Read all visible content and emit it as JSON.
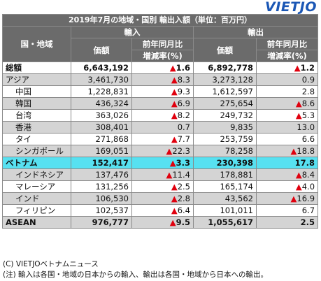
{
  "logo": {
    "part1": "VIET",
    "part2": "JO"
  },
  "table": {
    "title": "2019年7月の地域・国別 輸出入額（単位：百万円）",
    "col_region": "国・地域",
    "import_label": "輸入",
    "export_label": "輸出",
    "value_label": "価額",
    "change_label_1": "前年同月比",
    "change_label_2": "増減率(%)"
  },
  "neg_marker": "▲",
  "rows": [
    {
      "name": "総額",
      "imp": "6,643,192",
      "imp_neg": true,
      "imp_chg": "1.6",
      "exp": "6,892,778",
      "exp_neg": true,
      "exp_chg": "1.2",
      "style": "bold"
    },
    {
      "name": "アジア",
      "imp": "3,461,730",
      "imp_neg": true,
      "imp_chg": "8.3",
      "exp": "3,273,128",
      "exp_neg": false,
      "exp_chg": "0.9",
      "style": "grey"
    },
    {
      "name": "中国",
      "imp": "1,228,831",
      "imp_neg": true,
      "imp_chg": "9.3",
      "exp": "1,612,597",
      "exp_neg": false,
      "exp_chg": "2.8",
      "style": "indent"
    },
    {
      "name": "韓国",
      "imp": "436,324",
      "imp_neg": true,
      "imp_chg": "6.9",
      "exp": "275,654",
      "exp_neg": true,
      "exp_chg": "8.6",
      "style": "grey-indent"
    },
    {
      "name": "台湾",
      "imp": "363,026",
      "imp_neg": true,
      "imp_chg": "8.2",
      "exp": "249,732",
      "exp_neg": true,
      "exp_chg": "5.3",
      "style": "indent"
    },
    {
      "name": "香港",
      "imp": "308,401",
      "imp_neg": false,
      "imp_chg": "0.7",
      "exp": "9,835",
      "exp_neg": false,
      "exp_chg": "13.0",
      "style": "grey-indent"
    },
    {
      "name": "タイ",
      "imp": "271,868",
      "imp_neg": true,
      "imp_chg": "7.7",
      "exp": "253,759",
      "exp_neg": false,
      "exp_chg": "6.6",
      "style": "indent"
    },
    {
      "name": "シンガポール",
      "imp": "169,051",
      "imp_neg": true,
      "imp_chg": "22.3",
      "exp": "78,258",
      "exp_neg": true,
      "exp_chg": "18.8",
      "style": "grey-indent"
    },
    {
      "name": "ベトナム",
      "imp": "152,417",
      "imp_neg": true,
      "imp_chg": "3.3",
      "exp": "230,398",
      "exp_neg": false,
      "exp_chg": "17.8",
      "style": "hl"
    },
    {
      "name": "インドネシア",
      "imp": "137,476",
      "imp_neg": true,
      "imp_chg": "11.4",
      "exp": "178,881",
      "exp_neg": true,
      "exp_chg": "8.4",
      "style": "grey-indent"
    },
    {
      "name": "マレーシア",
      "imp": "131,256",
      "imp_neg": true,
      "imp_chg": "2.5",
      "exp": "165,174",
      "exp_neg": true,
      "exp_chg": "4.0",
      "style": "indent"
    },
    {
      "name": "インド",
      "imp": "106,530",
      "imp_neg": true,
      "imp_chg": "2.8",
      "exp": "43,562",
      "exp_neg": true,
      "exp_chg": "16.9",
      "style": "grey-indent"
    },
    {
      "name": "フィリピン",
      "imp": "102,537",
      "imp_neg": true,
      "imp_chg": "6.4",
      "exp": "101,011",
      "exp_neg": false,
      "exp_chg": "6.7",
      "style": "indent"
    },
    {
      "name": "ASEAN",
      "imp": "976,777",
      "imp_neg": true,
      "imp_chg": "9.5",
      "exp": "1,055,617",
      "exp_neg": false,
      "exp_chg": "2.5",
      "style": "bold-grey"
    }
  ],
  "notes": {
    "copyright": "(C) VIETJOベトナムニュース",
    "note": "(注) 輸入は各国・地域の日本からの輸入、輸出は各国・地域から日本への輸出。"
  }
}
